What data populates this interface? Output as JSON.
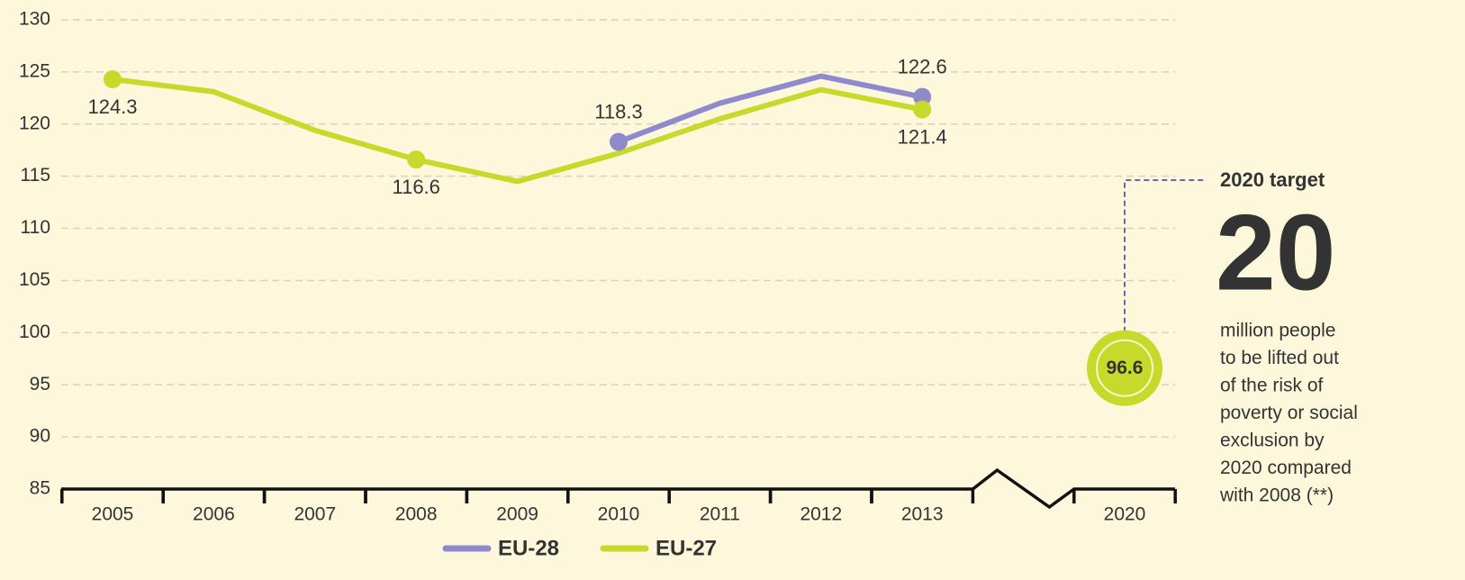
{
  "chart_data": {
    "type": "line",
    "categories": [
      "2005",
      "2006",
      "2007",
      "2008",
      "2009",
      "2010",
      "2011",
      "2012",
      "2013",
      null,
      "2020"
    ],
    "series": [
      {
        "name": "EU-28",
        "color": "#8e8acb",
        "values": [
          null,
          null,
          null,
          null,
          null,
          118.3,
          122.0,
          124.6,
          122.6,
          null,
          null
        ],
        "markers": [
          5,
          8
        ]
      },
      {
        "name": "EU-27",
        "color": "#c6da2c",
        "values": [
          124.3,
          123.1,
          119.4,
          116.6,
          114.5,
          117.2,
          120.5,
          123.3,
          121.4,
          null,
          null
        ],
        "markers": [
          0,
          3,
          8
        ]
      }
    ],
    "ylim": [
      85,
      130
    ],
    "yticks": [
      85,
      90,
      95,
      100,
      105,
      110,
      115,
      120,
      125,
      130
    ],
    "grid": true,
    "target": {
      "value": 96.6,
      "category": "2020",
      "label": "2020 target",
      "headline": "20",
      "note": [
        "million people",
        "to be lifted out",
        "of the risk of",
        "poverty or social",
        "exclusion by",
        "2020 compared",
        "with 2008 (**)"
      ]
    }
  }
}
